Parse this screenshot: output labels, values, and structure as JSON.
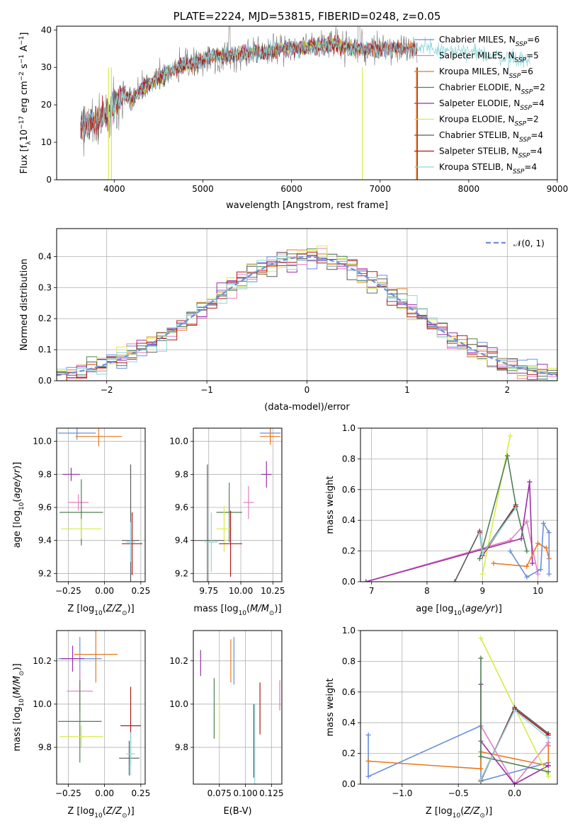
{
  "colors": {
    "Chabrier MILES": "#6a8fdc",
    "Salpeter MILES": "#e07fc0",
    "Kroupa MILES": "#e8791c",
    "Chabrier ELODIE": "#4f7f55",
    "Salpeter ELODIE": "#9a2fa8",
    "Kroupa ELODIE": "#d8eb46",
    "Chabrier STELIB": "#5a5a5a",
    "Salpeter STELIB": "#b01818",
    "Kroupa STELIB": "#8fd6dc"
  },
  "chart_data": [
    {
      "id": "spectrum",
      "type": "line",
      "title": "PLATE=2224, MJD=53815, FIBERID=0248, z=0.05",
      "xlabel": "wavelength [Angstrom, rest frame]",
      "ylabel": "Flux [f_λ10^-17 erg cm^-2 s^-1 A^-1]",
      "xlim": [
        3350,
        9000
      ],
      "ylim": [
        0,
        41
      ],
      "xticks": [
        4000,
        5000,
        6000,
        7000,
        8000,
        9000
      ],
      "yticks": [
        0,
        10,
        20,
        30,
        40
      ],
      "legend_position": "right",
      "legend": [
        "Chabrier MILES, N_SSP=6",
        "Salpeter MILES, N_SSP=5",
        "Kroupa MILES, N_SSP=6",
        "Chabrier ELODIE, N_SSP=2",
        "Salpeter ELODIE, N_SSP=4",
        "Kroupa ELODIE, N_SSP=2",
        "Chabrier STELIB, N_SSP=4",
        "Salpeter STELIB, N_SSP=4",
        "Kroupa STELIB, N_SSP=4"
      ],
      "continuum": [
        [
          3620,
          13
        ],
        [
          3700,
          15
        ],
        [
          3800,
          16
        ],
        [
          3900,
          17
        ],
        [
          4000,
          20
        ],
        [
          4100,
          23
        ],
        [
          4200,
          21
        ],
        [
          4300,
          24
        ],
        [
          4500,
          27
        ],
        [
          4700,
          30
        ],
        [
          4900,
          31
        ],
        [
          5100,
          33
        ],
        [
          5300,
          33
        ],
        [
          5500,
          34
        ],
        [
          5700,
          34
        ],
        [
          5900,
          35
        ],
        [
          6100,
          35
        ],
        [
          6300,
          36
        ],
        [
          6500,
          36
        ],
        [
          6700,
          35
        ],
        [
          6900,
          35
        ],
        [
          7100,
          35
        ],
        [
          7300,
          35
        ],
        [
          7500,
          35
        ],
        [
          7700,
          34.5
        ],
        [
          8000,
          34
        ],
        [
          8300,
          33
        ],
        [
          8600,
          32
        ],
        [
          8700,
          32
        ]
      ],
      "series": [
        {
          "name": "Data",
          "color": "#7a7a7a",
          "xrange": [
            3620,
            7420
          ],
          "scatter": 3.0
        },
        {
          "name": "Chabrier MILES",
          "color": "#6a8fdc",
          "xrange": [
            3620,
            7420
          ],
          "scatter": 1.4
        },
        {
          "name": "Salpeter MILES",
          "color": "#e07fc0",
          "xrange": [
            3620,
            7420
          ],
          "scatter": 1.4
        },
        {
          "name": "Kroupa MILES",
          "color": "#e8791c",
          "xrange": [
            3620,
            7420
          ],
          "scatter": 1.4
        },
        {
          "name": "Chabrier ELODIE",
          "color": "#4f7f55",
          "xrange": [
            3900,
            6800
          ],
          "scatter": 1.2
        },
        {
          "name": "Salpeter ELODIE",
          "color": "#9a2fa8",
          "xrange": [
            3900,
            6800
          ],
          "scatter": 1.2
        },
        {
          "name": "Kroupa ELODIE",
          "color": "#d8eb46",
          "xrange": [
            3900,
            6800
          ],
          "scatter": 1.2
        },
        {
          "name": "Chabrier STELIB",
          "color": "#5a5a5a",
          "xrange": [
            3620,
            7420
          ],
          "scatter": 1.8
        },
        {
          "name": "Salpeter STELIB",
          "color": "#b01818",
          "xrange": [
            3620,
            7420
          ],
          "scatter": 1.6
        },
        {
          "name": "Kroupa STELIB",
          "color": "#8fd6dc",
          "xrange": [
            3620,
            8700
          ],
          "scatter": 1.6
        }
      ]
    },
    {
      "id": "residuals",
      "type": "histogram",
      "xlabel": "(data-model)/error",
      "ylabel": "Normed distribution",
      "xlim": [
        -2.5,
        2.5
      ],
      "ylim": [
        0,
        0.49
      ],
      "xticks": [
        -2,
        -1,
        0,
        1,
        2
      ],
      "yticks": [
        0.0,
        0.1,
        0.2,
        0.3,
        0.4
      ],
      "grid": true,
      "legend": "𝒩(0, 1)",
      "legend_position": "top-right",
      "gaussian": {
        "mean": 0,
        "sigma": 1,
        "color": "#6a8fdc",
        "style": "dashed"
      },
      "bin_width": 0.1,
      "noise": 0.025
    },
    {
      "id": "age-vs-Z",
      "type": "errorbar",
      "xlabel": "Z [log10(Z/Z⊙)]",
      "ylabel": "age  [log10(age/yr)]",
      "xlim": [
        -0.33,
        0.28
      ],
      "ylim": [
        9.15,
        10.08
      ],
      "xticks": [
        -0.25,
        0.0,
        0.25
      ],
      "yticks": [
        9.2,
        9.4,
        9.6,
        9.8,
        10.0
      ],
      "grid": true,
      "points": [
        {
          "name": "Chabrier MILES",
          "x": -0.19,
          "xerr": 0.13,
          "y": 10.05,
          "yerr": 0.04
        },
        {
          "name": "Kroupa MILES",
          "x": -0.04,
          "xerr": 0.16,
          "y": 10.03,
          "yerr": 0.06
        },
        {
          "name": "Salpeter ELODIE",
          "x": -0.23,
          "xerr": 0.06,
          "y": 9.8,
          "yerr": 0.04
        },
        {
          "name": "Salpeter MILES",
          "x": -0.18,
          "xerr": 0.07,
          "y": 9.63,
          "yerr": 0.05
        },
        {
          "name": "Chabrier ELODIE",
          "x": -0.16,
          "xerr": 0.15,
          "y": 9.57,
          "yerr": 0.2
        },
        {
          "name": "Kroupa ELODIE",
          "x": -0.16,
          "xerr": 0.14,
          "y": 9.47,
          "yerr": 0.06
        },
        {
          "name": "Chabrier STELIB",
          "x": 0.18,
          "xerr": 0.06,
          "y": 9.4,
          "yerr": 0.46
        },
        {
          "name": "Salpeter STELIB",
          "x": 0.19,
          "xerr": 0.07,
          "y": 9.38,
          "yerr": 0.19
        },
        {
          "name": "Kroupa STELIB",
          "x": 0.18,
          "xerr": 0.03,
          "y": 9.39,
          "yerr": 0.12
        }
      ]
    },
    {
      "id": "age-vs-mass",
      "type": "errorbar",
      "xlabel": "mass [log10(M/M⊙)]",
      "ylabel": "",
      "xlim": [
        9.63,
        10.32
      ],
      "ylim": [
        9.15,
        10.08
      ],
      "xticks": [
        9.75,
        10.0,
        10.25
      ],
      "yticks": [
        9.2,
        9.4,
        9.6,
        9.8,
        10.0
      ],
      "grid": true,
      "points": [
        {
          "name": "Chabrier MILES",
          "x": 10.23,
          "xerr": 0.08,
          "y": 10.05,
          "yerr": 0.05
        },
        {
          "name": "Kroupa MILES",
          "x": 10.23,
          "xerr": 0.08,
          "y": 10.03,
          "yerr": 0.05
        },
        {
          "name": "Salpeter ELODIE",
          "x": 10.2,
          "xerr": 0.04,
          "y": 9.8,
          "yerr": 0.08
        },
        {
          "name": "Salpeter MILES",
          "x": 10.06,
          "xerr": 0.04,
          "y": 9.63,
          "yerr": 0.1
        },
        {
          "name": "Chabrier ELODIE",
          "x": 9.91,
          "xerr": 0.1,
          "y": 9.57,
          "yerr": 0.18
        },
        {
          "name": "Kroupa ELODIE",
          "x": 9.87,
          "xerr": 0.06,
          "y": 9.47,
          "yerr": 0.14
        },
        {
          "name": "Chabrier STELIB",
          "x": 9.74,
          "xerr": 0.13,
          "y": 9.4,
          "yerr": 0.46
        },
        {
          "name": "Salpeter STELIB",
          "x": 9.92,
          "xerr": 0.09,
          "y": 9.38,
          "yerr": 0.2
        },
        {
          "name": "Kroupa STELIB",
          "x": 9.77,
          "xerr": 0.05,
          "y": 9.39,
          "yerr": 0.18
        }
      ]
    },
    {
      "id": "massweight-vs-age",
      "type": "line",
      "xlabel": "age  [log10(age/yr)]",
      "ylabel": "mass weight",
      "xlim": [
        6.8,
        10.35
      ],
      "ylim": [
        0,
        1.0
      ],
      "xticks": [
        7,
        8,
        9,
        10
      ],
      "yticks": [
        0.0,
        0.2,
        0.4,
        0.6,
        0.8,
        1.0
      ],
      "grid": true,
      "series": [
        {
          "name": "Salpeter MILES",
          "x": [
            6.9,
            9.5,
            9.8,
            10.0
          ],
          "y": [
            0.0,
            0.27,
            0.39,
            0.05
          ]
        },
        {
          "name": "Salpeter ELODIE",
          "x": [
            6.9,
            9.7,
            9.85,
            9.9
          ],
          "y": [
            0.0,
            0.28,
            0.65,
            0.12
          ]
        },
        {
          "name": "Kroupa MILES",
          "x": [
            9.2,
            9.8,
            10.0,
            10.15,
            10.2
          ],
          "y": [
            0.12,
            0.1,
            0.25,
            0.22,
            0.15
          ]
        },
        {
          "name": "Chabrier MILES",
          "x": [
            9.5,
            9.8,
            10.05,
            10.1,
            10.2,
            10.2
          ],
          "y": [
            0.2,
            0.03,
            0.08,
            0.38,
            0.32,
            0.05
          ]
        },
        {
          "name": "Kroupa ELODIE",
          "x": [
            9.0,
            9.5
          ],
          "y": [
            0.05,
            0.95
          ]
        },
        {
          "name": "Chabrier ELODIE",
          "x": [
            8.95,
            9.45,
            9.6,
            9.8
          ],
          "y": [
            0.15,
            0.82,
            0.5,
            0.2
          ]
        },
        {
          "name": "Chabrier STELIB",
          "x": [
            8.5,
            8.95,
            9.0,
            9.6
          ],
          "y": [
            0.0,
            0.33,
            0.18,
            0.5
          ]
        },
        {
          "name": "Salpeter STELIB",
          "x": [
            8.95,
            9.0,
            9.6
          ],
          "y": [
            0.32,
            0.17,
            0.49
          ]
        },
        {
          "name": "Kroupa STELIB",
          "x": [
            8.95,
            9.0,
            9.6
          ],
          "y": [
            0.31,
            0.18,
            0.48
          ]
        }
      ]
    },
    {
      "id": "mass-vs-Z",
      "type": "errorbar",
      "xlabel": "Z [log10(Z/Z⊙)]",
      "ylabel": "mass [log10(M/M⊙)]",
      "xlim": [
        -0.33,
        0.28
      ],
      "ylim": [
        9.63,
        10.34
      ],
      "xticks": [
        -0.25,
        0.0,
        0.25
      ],
      "yticks": [
        9.8,
        10.0,
        10.2
      ],
      "grid": true,
      "points": [
        {
          "name": "Chabrier MILES",
          "x": -0.17,
          "xerr": 0.15,
          "y": 10.21,
          "yerr": 0.1
        },
        {
          "name": "Kroupa MILES",
          "x": -0.06,
          "xerr": 0.15,
          "y": 10.23,
          "yerr": 0.13
        },
        {
          "name": "Salpeter ELODIE",
          "x": -0.22,
          "xerr": 0.08,
          "y": 10.21,
          "yerr": 0.06
        },
        {
          "name": "Salpeter MILES",
          "x": -0.17,
          "xerr": 0.09,
          "y": 10.06,
          "yerr": 0.1
        },
        {
          "name": "Chabrier ELODIE",
          "x": -0.17,
          "xerr": 0.15,
          "y": 9.92,
          "yerr": 0.19
        },
        {
          "name": "Kroupa ELODIE",
          "x": -0.16,
          "xerr": 0.15,
          "y": 9.85,
          "yerr": 0.05
        },
        {
          "name": "Chabrier STELIB",
          "x": 0.17,
          "xerr": 0.07,
          "y": 9.75,
          "yerr": 0.08
        },
        {
          "name": "Salpeter STELIB",
          "x": 0.18,
          "xerr": 0.07,
          "y": 9.9,
          "yerr": 0.18
        },
        {
          "name": "Kroupa STELIB",
          "x": 0.18,
          "xerr": 0.03,
          "y": 9.77,
          "yerr": 0.1
        }
      ]
    },
    {
      "id": "mass-vs-EBV",
      "type": "errorbar",
      "xlabel": "E(B-V)",
      "ylabel": "",
      "xlim": [
        0.05,
        0.135
      ],
      "ylim": [
        9.63,
        10.34
      ],
      "xticks": [
        0.075,
        0.1,
        0.125
      ],
      "yticks": [
        9.8,
        10.0,
        10.2
      ],
      "grid": true,
      "points": [
        {
          "name": "Salpeter ELODIE",
          "x": 0.057,
          "xerr": 0.0,
          "y": 10.19,
          "yerr": 0.06
        },
        {
          "name": "Kroupa MILES",
          "x": 0.086,
          "xerr": 0.0,
          "y": 10.2,
          "yerr": 0.1
        },
        {
          "name": "Chabrier MILES",
          "x": 0.089,
          "xerr": 0.0,
          "y": 10.2,
          "yerr": 0.11
        },
        {
          "name": "Chabrier ELODIE",
          "x": 0.07,
          "xerr": 0.0,
          "y": 9.98,
          "yerr": 0.14
        },
        {
          "name": "Kroupa ELODIE",
          "x": 0.075,
          "xerr": 0.0,
          "y": 9.93,
          "yerr": 0.1
        },
        {
          "name": "Chabrier STELIB",
          "x": 0.108,
          "xerr": 0.0,
          "y": 9.83,
          "yerr": 0.17
        },
        {
          "name": "Salpeter STELIB",
          "x": 0.114,
          "xerr": 0.0,
          "y": 9.98,
          "yerr": 0.12
        },
        {
          "name": "Kroupa STELIB",
          "x": 0.109,
          "xerr": 0.0,
          "y": 9.8,
          "yerr": 0.2
        },
        {
          "name": "Salpeter MILES",
          "x": 0.133,
          "xerr": 0.0,
          "y": 10.04,
          "yerr": 0.07
        }
      ]
    },
    {
      "id": "massweight-vs-Z",
      "type": "line",
      "xlabel": "Z [log10(Z/Z⊙)]",
      "ylabel": "mass weight",
      "xlim": [
        -1.37,
        0.38
      ],
      "ylim": [
        0,
        1.0
      ],
      "xticks": [
        -1.0,
        -0.5,
        0.0
      ],
      "yticks": [
        0.0,
        0.2,
        0.4,
        0.6,
        0.8,
        1.0
      ],
      "grid": true,
      "series": [
        {
          "name": "Chabrier MILES",
          "x": [
            -1.3,
            -1.3,
            -0.3,
            -0.3,
            0.3,
            0.3
          ],
          "y": [
            0.32,
            0.05,
            0.38,
            0.02,
            0.14,
            0.32
          ]
        },
        {
          "name": "Kroupa MILES",
          "x": [
            -1.3,
            -0.3,
            -0.3,
            0.3,
            0.3
          ],
          "y": [
            0.15,
            0.1,
            0.21,
            0.12,
            0.25
          ]
        },
        {
          "name": "Salpeter MILES",
          "x": [
            -0.3,
            0.0,
            0.3
          ],
          "y": [
            0.38,
            0.0,
            0.27
          ]
        },
        {
          "name": "Salpeter ELODIE",
          "x": [
            -0.3,
            -0.3,
            0.0,
            0.3
          ],
          "y": [
            0.65,
            0.28,
            0.0,
            0.12
          ]
        },
        {
          "name": "Kroupa ELODIE",
          "x": [
            -0.3,
            0.3
          ],
          "y": [
            0.95,
            0.05
          ]
        },
        {
          "name": "Chabrier ELODIE",
          "x": [
            -0.3,
            -0.3,
            0.3
          ],
          "y": [
            0.82,
            0.18,
            0.08
          ]
        },
        {
          "name": "Chabrier STELIB",
          "x": [
            -0.3,
            0.0,
            0.3
          ],
          "y": [
            0.02,
            0.5,
            0.33
          ]
        },
        {
          "name": "Salpeter STELIB",
          "x": [
            -0.3,
            0.0,
            0.3
          ],
          "y": [
            0.03,
            0.49,
            0.32
          ]
        },
        {
          "name": "Kroupa STELIB",
          "x": [
            -0.3,
            0.0,
            0.3
          ],
          "y": [
            0.03,
            0.48,
            0.3
          ]
        }
      ]
    }
  ]
}
